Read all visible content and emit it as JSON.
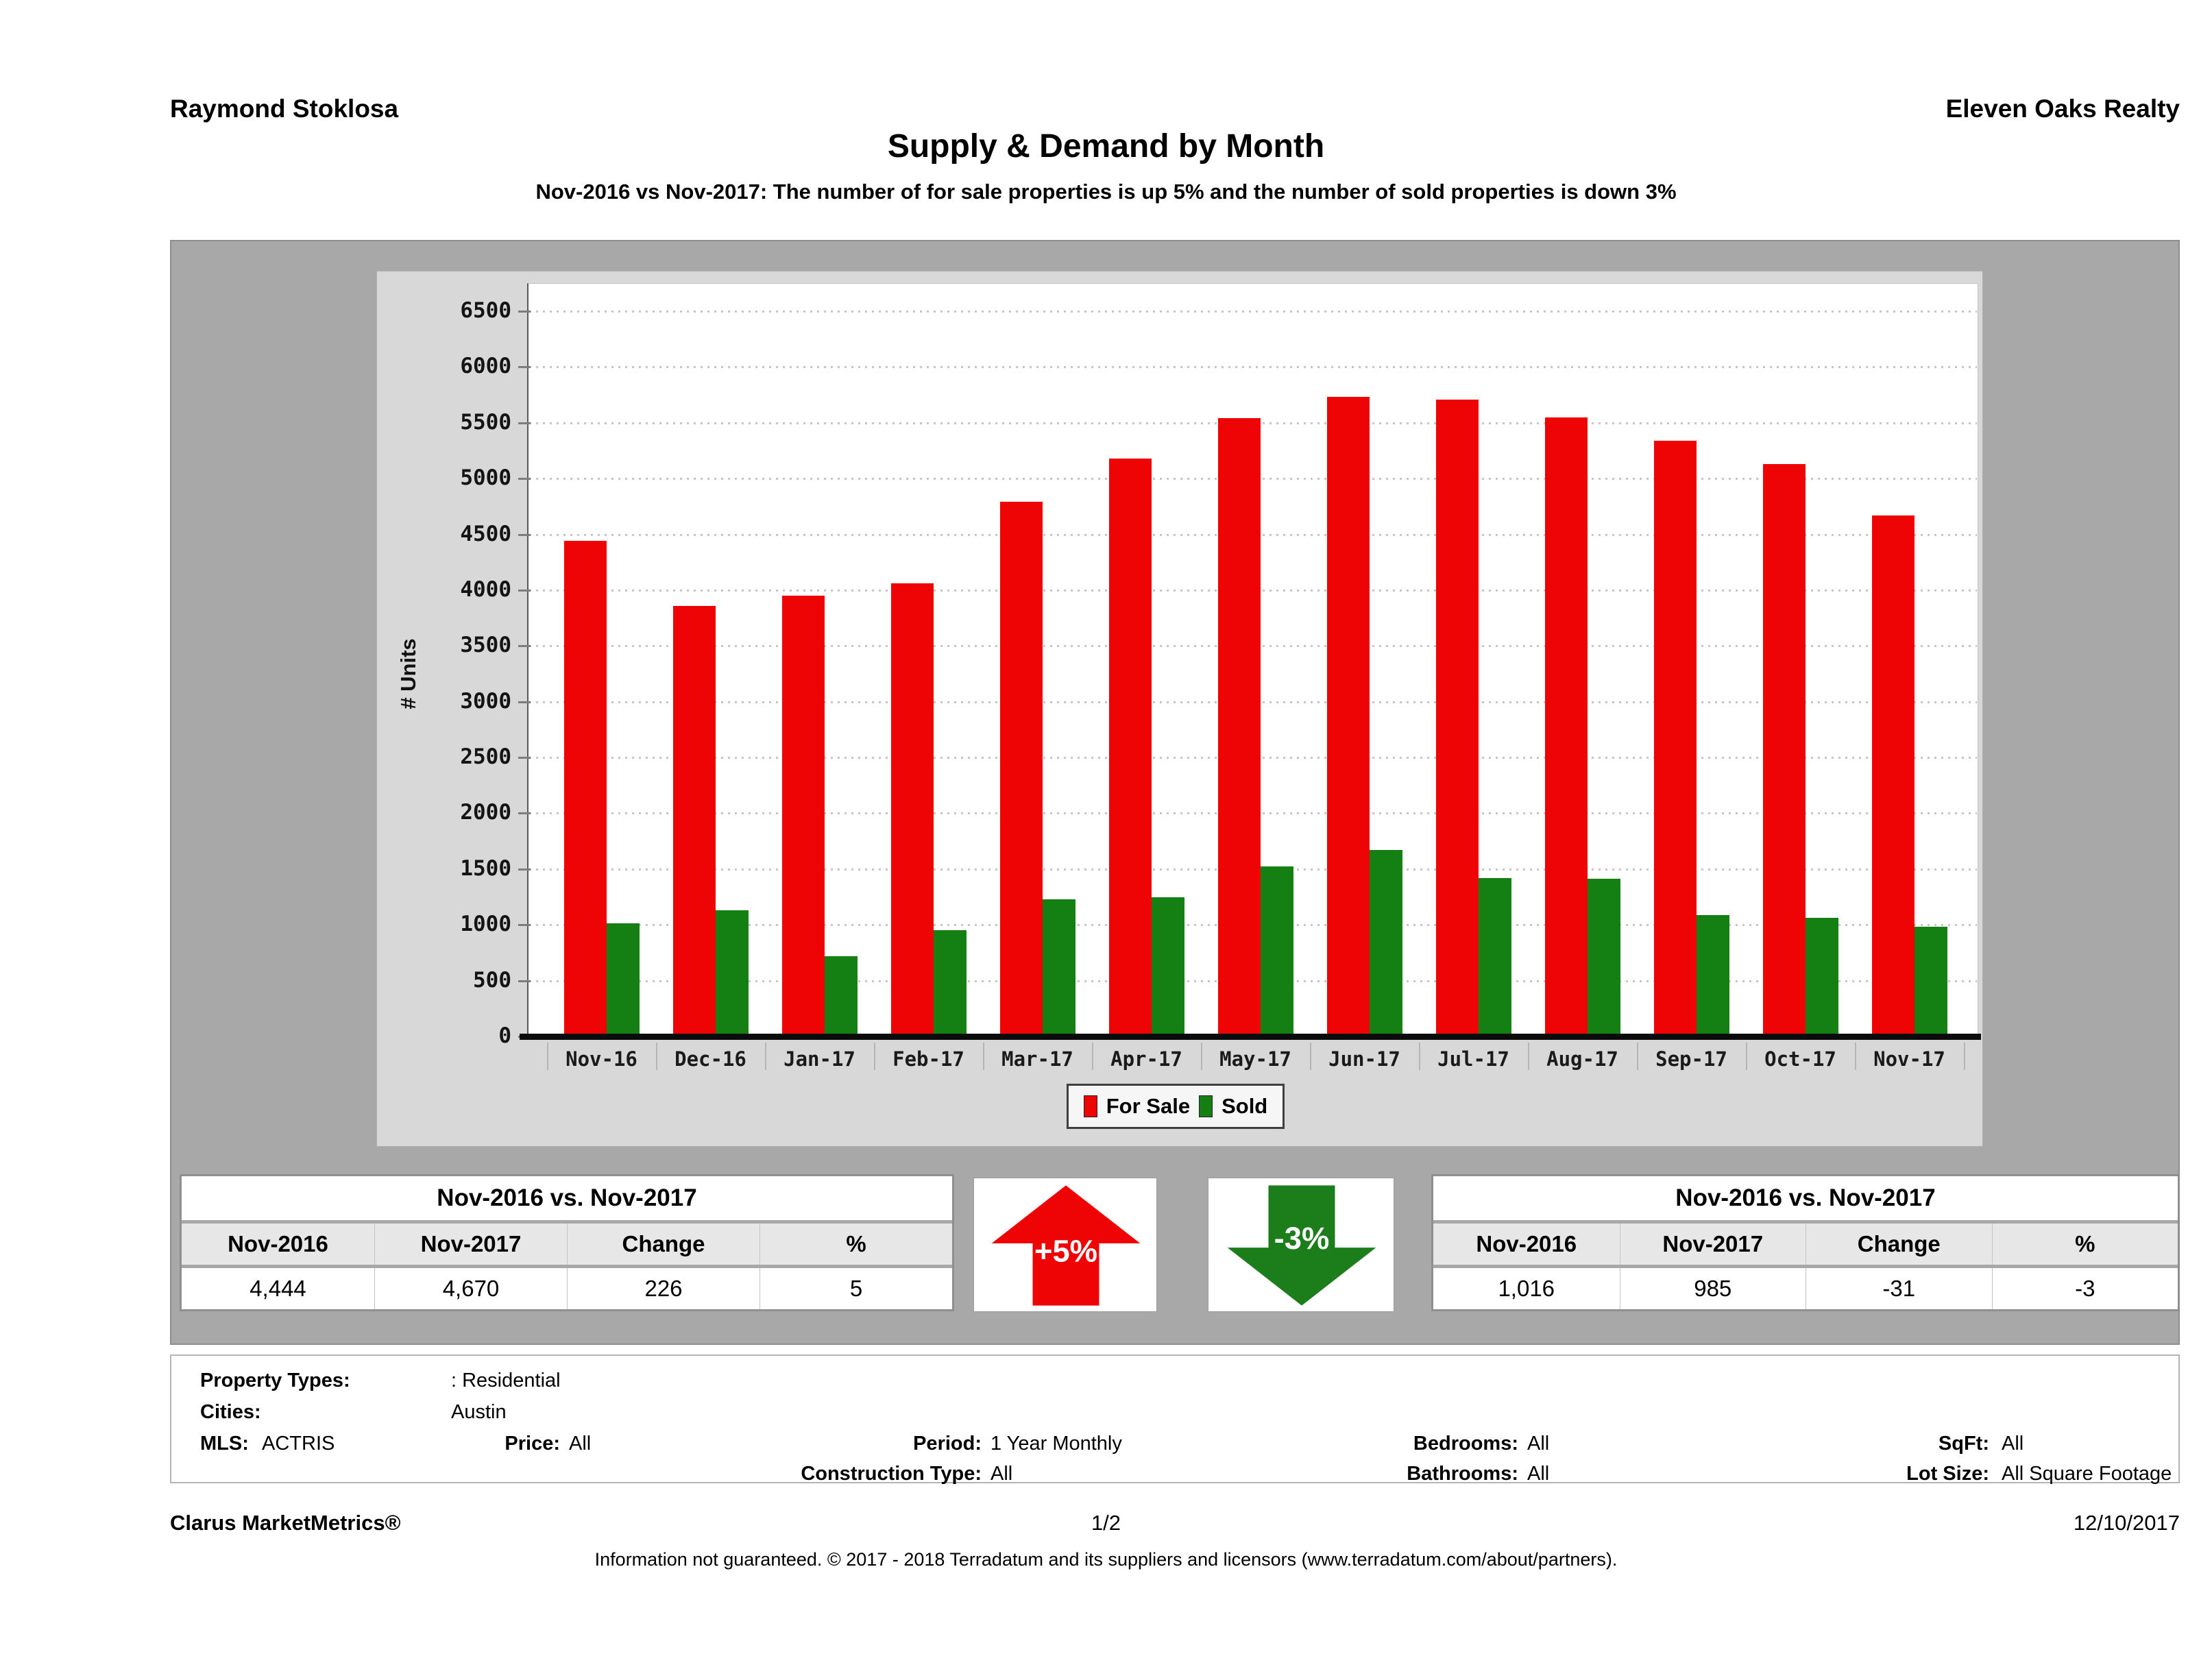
{
  "header": {
    "agent_name": "Raymond Stoklosa",
    "company_name": "Eleven Oaks Realty",
    "title": "Supply & Demand by Month",
    "subtitle": "Nov-2016 vs Nov-2017: The number of for sale properties is up 5% and the number of sold properties is down 3%"
  },
  "chart_data": {
    "type": "bar",
    "title": "Supply & Demand by Month",
    "xlabel": "",
    "ylabel": "# Units",
    "ylim": [
      0,
      6500
    ],
    "ytick_step": 500,
    "grid": true,
    "legend_position": "bottom",
    "categories": [
      "Nov-16",
      "Dec-16",
      "Jan-17",
      "Feb-17",
      "Mar-17",
      "Apr-17",
      "May-17",
      "Jun-17",
      "Jul-17",
      "Aug-17",
      "Sep-17",
      "Oct-17",
      "Nov-17"
    ],
    "series": [
      {
        "name": "For Sale",
        "color": "#ee0404",
        "values": [
          4444,
          3860,
          3950,
          4060,
          4790,
          5180,
          5540,
          5730,
          5710,
          5550,
          5340,
          5130,
          4670
        ]
      },
      {
        "name": "Sold",
        "color": "#148014",
        "values": [
          1016,
          1130,
          720,
          955,
          1230,
          1250,
          1525,
          1670,
          1420,
          1410,
          1090,
          1060,
          985
        ]
      }
    ]
  },
  "comparison_tables": {
    "for_sale": {
      "title": "Nov-2016 vs. Nov-2017",
      "columns": [
        "Nov-2016",
        "Nov-2017",
        "Change",
        "%"
      ],
      "values": [
        "4,444",
        "4,670",
        "226",
        "5"
      ]
    },
    "sold": {
      "title": "Nov-2016 vs. Nov-2017",
      "columns": [
        "Nov-2016",
        "Nov-2017",
        "Change",
        "%"
      ],
      "values": [
        "1,016",
        "985",
        "-31",
        "-3"
      ]
    }
  },
  "indicators": {
    "for_sale_change": "+5%",
    "sold_change": "-3%",
    "up_color": "#ee0404",
    "down_color": "#1b7e1b"
  },
  "filters": {
    "property_types_label": "Property Types:",
    "property_types_value": ": Residential",
    "cities_label": "Cities:",
    "cities_value": "Austin",
    "mls_label": "MLS:",
    "mls_value": "ACTRIS",
    "price_label": "Price:",
    "price_value": "All",
    "period_label": "Period:",
    "period_value": "1 Year Monthly",
    "construction_label": "Construction Type:",
    "construction_value": "All",
    "bedrooms_label": "Bedrooms:",
    "bedrooms_value": "All",
    "bathrooms_label": "Bathrooms:",
    "bathrooms_value": "All",
    "sqft_label": "SqFt:",
    "sqft_value": "All",
    "lot_size_label": "Lot Size:",
    "lot_size_value": "All Square Footage"
  },
  "footer": {
    "product": "Clarus MarketMetrics®",
    "page": "1/2",
    "date": "12/10/2017",
    "disclaimer": "Information not guaranteed. © 2017 - 2018 Terradatum and its suppliers and licensors (www.terradatum.com/about/partners)."
  }
}
